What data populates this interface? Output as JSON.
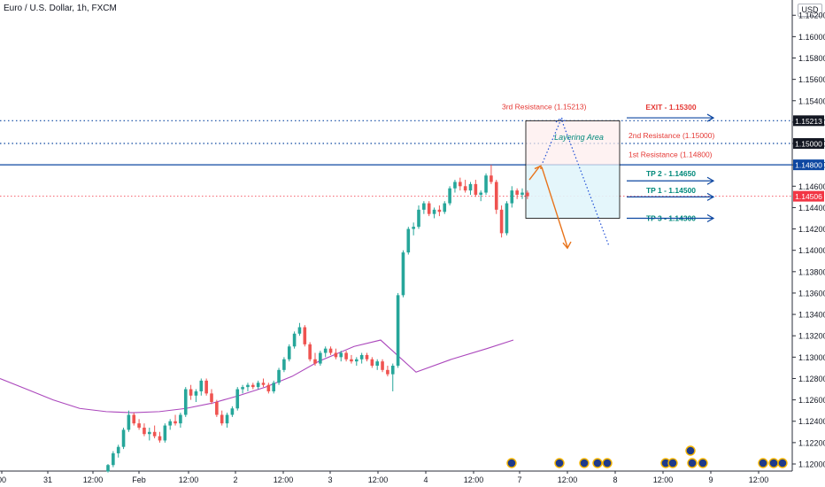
{
  "header": {
    "title": "Euro / U.S. Dollar, 1h, FXCM",
    "currency": "USD"
  },
  "chart_data": {
    "type": "candlestick",
    "y_axis": {
      "ticks": [
        "1.16200",
        "1.16000",
        "1.15800",
        "1.15600",
        "1.15400",
        "1.15200",
        "1.15000",
        "1.14800",
        "1.14600",
        "1.14400",
        "1.14200",
        "1.14000",
        "1.13800",
        "1.13600",
        "1.13400",
        "1.13200",
        "1.13000",
        "1.12800",
        "1.12600",
        "1.12400",
        "1.12200",
        "1.12000"
      ],
      "ylim": [
        1.1193,
        1.1627
      ]
    },
    "x_axis": {
      "labels": [
        "00",
        "31",
        "12:00",
        "Feb",
        "12:00",
        "2",
        "12:00",
        "3",
        "12:00",
        "4",
        "12:00",
        "7",
        "12:00",
        "8",
        "12:00",
        "9",
        "12:00"
      ]
    },
    "price_labels": [
      {
        "value": 1.15213,
        "text": "1.15213",
        "style": "dark"
      },
      {
        "value": 1.15,
        "text": "1.15000",
        "style": "dark"
      },
      {
        "value": 1.148,
        "text": "1.14800",
        "style": "blue"
      },
      {
        "value": 1.14506,
        "text": "1.14506",
        "style": "red"
      }
    ],
    "candles": [
      [
        1.1193,
        1.12,
        1.1192,
        1.1199
      ],
      [
        1.1199,
        1.1212,
        1.1197,
        1.121
      ],
      [
        1.121,
        1.1218,
        1.1206,
        1.1216
      ],
      [
        1.1216,
        1.1234,
        1.1214,
        1.1232
      ],
      [
        1.1232,
        1.125,
        1.123,
        1.1246
      ],
      [
        1.1246,
        1.1248,
        1.1236,
        1.1238
      ],
      [
        1.1238,
        1.1242,
        1.1232,
        1.1234
      ],
      [
        1.1234,
        1.1238,
        1.1226,
        1.1228
      ],
      [
        1.1228,
        1.1234,
        1.1222,
        1.123
      ],
      [
        1.123,
        1.1236,
        1.1224,
        1.1226
      ],
      [
        1.1226,
        1.123,
        1.122,
        1.1222
      ],
      [
        1.1222,
        1.1238,
        1.122,
        1.1236
      ],
      [
        1.1236,
        1.1242,
        1.1232,
        1.124
      ],
      [
        1.124,
        1.1246,
        1.1236,
        1.1238
      ],
      [
        1.1238,
        1.1248,
        1.1234,
        1.1246
      ],
      [
        1.1246,
        1.1272,
        1.1244,
        1.127
      ],
      [
        1.127,
        1.1274,
        1.126,
        1.1264
      ],
      [
        1.1264,
        1.127,
        1.1258,
        1.1268
      ],
      [
        1.1268,
        1.128,
        1.1264,
        1.1278
      ],
      [
        1.1278,
        1.128,
        1.1264,
        1.1266
      ],
      [
        1.1266,
        1.127,
        1.1256,
        1.1258
      ],
      [
        1.1258,
        1.126,
        1.1244,
        1.1246
      ],
      [
        1.1246,
        1.125,
        1.1236,
        1.1238
      ],
      [
        1.1238,
        1.1248,
        1.1234,
        1.1246
      ],
      [
        1.1246,
        1.1254,
        1.1244,
        1.1252
      ],
      [
        1.1252,
        1.1272,
        1.125,
        1.127
      ],
      [
        1.127,
        1.1274,
        1.1266,
        1.1272
      ],
      [
        1.1272,
        1.1276,
        1.1268,
        1.1274
      ],
      [
        1.1274,
        1.1276,
        1.127,
        1.1272
      ],
      [
        1.1272,
        1.1278,
        1.127,
        1.1276
      ],
      [
        1.1276,
        1.128,
        1.1272,
        1.1274
      ],
      [
        1.1274,
        1.1276,
        1.1266,
        1.1268
      ],
      [
        1.1268,
        1.1278,
        1.1266,
        1.1276
      ],
      [
        1.1276,
        1.129,
        1.1274,
        1.1288
      ],
      [
        1.1288,
        1.13,
        1.1286,
        1.1298
      ],
      [
        1.1298,
        1.1312,
        1.1296,
        1.131
      ],
      [
        1.131,
        1.1324,
        1.1308,
        1.1322
      ],
      [
        1.1322,
        1.1332,
        1.132,
        1.1328
      ],
      [
        1.1328,
        1.133,
        1.131,
        1.1312
      ],
      [
        1.1312,
        1.1314,
        1.1296,
        1.1298
      ],
      [
        1.1298,
        1.1304,
        1.1292,
        1.1294
      ],
      [
        1.1294,
        1.1306,
        1.1292,
        1.1304
      ],
      [
        1.1304,
        1.131,
        1.13,
        1.1308
      ],
      [
        1.1308,
        1.131,
        1.1302,
        1.1304
      ],
      [
        1.1304,
        1.1308,
        1.1298,
        1.13
      ],
      [
        1.13,
        1.1306,
        1.1296,
        1.1304
      ],
      [
        1.1304,
        1.1306,
        1.1296,
        1.1298
      ],
      [
        1.1298,
        1.1302,
        1.1294,
        1.1296
      ],
      [
        1.1296,
        1.13,
        1.1292,
        1.1298
      ],
      [
        1.1298,
        1.1304,
        1.1294,
        1.1302
      ],
      [
        1.1302,
        1.1304,
        1.1296,
        1.1298
      ],
      [
        1.1298,
        1.13,
        1.129,
        1.1292
      ],
      [
        1.1292,
        1.1298,
        1.1288,
        1.1296
      ],
      [
        1.1296,
        1.1298,
        1.1286,
        1.1288
      ],
      [
        1.1288,
        1.1292,
        1.1282,
        1.1284
      ],
      [
        1.1284,
        1.1294,
        1.1268,
        1.1292
      ],
      [
        1.1292,
        1.136,
        1.129,
        1.1358
      ],
      [
        1.1358,
        1.14,
        1.1356,
        1.1398
      ],
      [
        1.1398,
        1.1422,
        1.1396,
        1.142
      ],
      [
        1.142,
        1.1426,
        1.1414,
        1.1422
      ],
      [
        1.1422,
        1.1442,
        1.142,
        1.1438
      ],
      [
        1.1438,
        1.1446,
        1.1434,
        1.1444
      ],
      [
        1.1444,
        1.1446,
        1.1432,
        1.1434
      ],
      [
        1.1434,
        1.144,
        1.143,
        1.1438
      ],
      [
        1.1438,
        1.1442,
        1.1432,
        1.1436
      ],
      [
        1.1436,
        1.1446,
        1.1434,
        1.1444
      ],
      [
        1.1444,
        1.146,
        1.1442,
        1.1458
      ],
      [
        1.1458,
        1.1466,
        1.1454,
        1.1464
      ],
      [
        1.1464,
        1.1468,
        1.1456,
        1.146
      ],
      [
        1.146,
        1.1466,
        1.1454,
        1.1456
      ],
      [
        1.1456,
        1.1464,
        1.1452,
        1.1462
      ],
      [
        1.1462,
        1.1466,
        1.145,
        1.1452
      ],
      [
        1.1452,
        1.1456,
        1.1446,
        1.1454
      ],
      [
        1.1454,
        1.1472,
        1.1452,
        1.147
      ],
      [
        1.147,
        1.148,
        1.1462,
        1.1464
      ],
      [
        1.1464,
        1.1466,
        1.1434,
        1.1438
      ],
      [
        1.1438,
        1.1442,
        1.1412,
        1.1416
      ],
      [
        1.1416,
        1.1446,
        1.1414,
        1.1444
      ],
      [
        1.1444,
        1.146,
        1.144,
        1.1456
      ],
      [
        1.1456,
        1.1458,
        1.1448,
        1.1452
      ],
      [
        1.1452,
        1.1458,
        1.1448,
        1.1454
      ],
      [
        1.1454,
        1.1456,
        1.1448,
        1.14506
      ]
    ],
    "moving_average": [
      1.128,
      1.127,
      1.126,
      1.1252,
      1.1249,
      1.1248,
      1.1249,
      1.1252,
      1.1257,
      1.1264,
      1.1272,
      1.1282,
      1.1296,
      1.131,
      1.1316
    ],
    "levels": [
      {
        "value": 1.15213,
        "label": "3rd Resistance (1.15213)"
      },
      {
        "value": 1.15,
        "label": "2nd Resistance (1.15000)"
      },
      {
        "value": 1.148,
        "label": "1st Resistance (1.14800)"
      },
      {
        "value": 1.14506,
        "label": ""
      }
    ],
    "targets": [
      {
        "value": 1.153,
        "label": "EXIT - 1.15300",
        "color": "#e53935"
      },
      {
        "value": 1.1465,
        "label": "TP 2 - 1.14650",
        "color": "#00897b"
      },
      {
        "value": 1.145,
        "label": "TP 1 - 1.14500",
        "color": "#00897b"
      },
      {
        "value": 1.143,
        "label": "TP 3 - 1.14300",
        "color": "#00897b"
      }
    ],
    "zone": {
      "top": 1.15213,
      "mid": 1.148,
      "bottom": 1.143,
      "label": "Layering Area"
    },
    "colors": {
      "up": "#26a69a",
      "down": "#ef5350",
      "ma": "#ab47bc",
      "level_line": "#0d47a1",
      "current": "#f23645",
      "zone_border": "#000000",
      "arrow": "#e8731a"
    }
  }
}
